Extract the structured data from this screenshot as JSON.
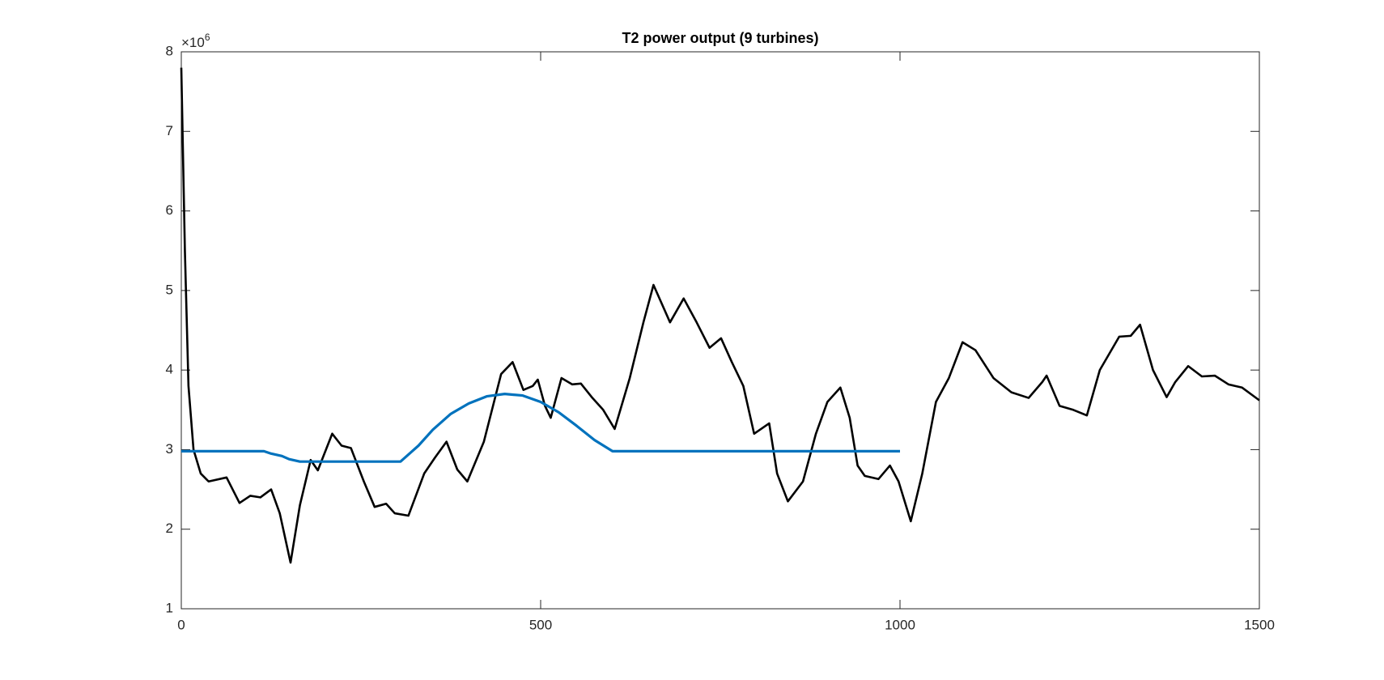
{
  "chart_data": {
    "type": "line",
    "title": "T2 power output (9 turbines)",
    "y_multiplier_base": "×10",
    "y_multiplier_exponent": "6",
    "xlim": [
      0,
      1500
    ],
    "xticks": [
      0,
      500,
      1000,
      1500
    ],
    "ylim": [
      1,
      8
    ],
    "yticks": [
      1,
      2,
      3,
      4,
      5,
      6,
      7,
      8
    ],
    "box": true,
    "grid": false,
    "series": [
      {
        "color": "#000000",
        "x": [
          0,
          5,
          10,
          17,
          27,
          38,
          63,
          81,
          96,
          110,
          125,
          137,
          152,
          165,
          180,
          190,
          210,
          223,
          236,
          254,
          269,
          285,
          297,
          316,
          338,
          353,
          369,
          384,
          398,
          421,
          445,
          461,
          476,
          489,
          496,
          506,
          514,
          529,
          544,
          556,
          572,
          587,
          603,
          624,
          643,
          657,
          680,
          699,
          717,
          735,
          751,
          766,
          782,
          797,
          818,
          829,
          844,
          865,
          883,
          899,
          917,
          930,
          941,
          951,
          970,
          986,
          998,
          1015,
          1031,
          1050,
          1068,
          1087,
          1105,
          1130,
          1155,
          1179,
          1198,
          1204,
          1222,
          1241,
          1260,
          1278,
          1305,
          1321,
          1334,
          1352,
          1371,
          1383,
          1401,
          1420,
          1438,
          1457,
          1476,
          1500
        ],
        "values": [
          7.8,
          5.5,
          3.8,
          3.0,
          2.7,
          2.6,
          2.65,
          2.33,
          2.42,
          2.4,
          2.5,
          2.2,
          1.58,
          2.3,
          2.87,
          2.74,
          3.2,
          3.05,
          3.02,
          2.6,
          2.28,
          2.32,
          2.2,
          2.17,
          2.7,
          2.9,
          3.1,
          2.75,
          2.6,
          3.1,
          3.95,
          4.1,
          3.75,
          3.8,
          3.88,
          3.55,
          3.4,
          3.9,
          3.82,
          3.83,
          3.65,
          3.5,
          3.26,
          3.9,
          4.6,
          5.07,
          4.6,
          4.9,
          4.6,
          4.28,
          4.4,
          4.1,
          3.8,
          3.2,
          3.33,
          2.7,
          2.35,
          2.6,
          3.2,
          3.6,
          3.78,
          3.4,
          2.8,
          2.67,
          2.63,
          2.8,
          2.6,
          2.1,
          2.7,
          3.6,
          3.9,
          4.35,
          4.25,
          3.9,
          3.72,
          3.65,
          3.85,
          3.93,
          3.55,
          3.5,
          3.43,
          4.0,
          4.42,
          4.43,
          4.57,
          4.0,
          3.66,
          3.85,
          4.05,
          3.92,
          3.93,
          3.82,
          3.78,
          3.62
        ]
      },
      {
        "color": "#0072bd",
        "x": [
          0,
          115,
          125,
          140,
          150,
          165,
          305,
          330,
          350,
          375,
          400,
          425,
          450,
          475,
          500,
          525,
          550,
          575,
          600,
          1000
        ],
        "values": [
          2.98,
          2.98,
          2.95,
          2.92,
          2.88,
          2.85,
          2.85,
          3.05,
          3.25,
          3.45,
          3.58,
          3.67,
          3.7,
          3.68,
          3.6,
          3.47,
          3.3,
          3.12,
          2.98,
          2.98
        ]
      }
    ]
  }
}
